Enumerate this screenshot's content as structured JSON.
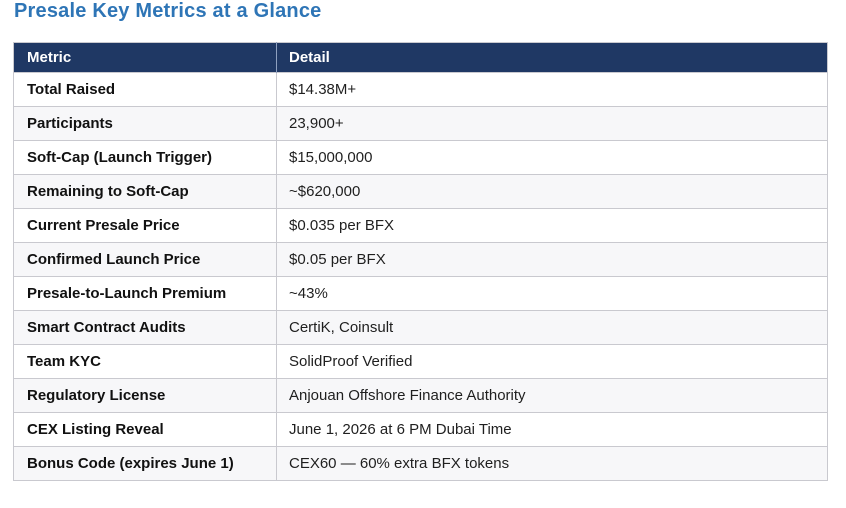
{
  "page": {
    "title": "Presale Key Metrics at a Glance"
  },
  "colors": {
    "title_text": "#2e75b6",
    "header_bg": "#1f3864",
    "header_text": "#ffffff",
    "row_alt_bg": "#f7f7f9",
    "border": "#c9c9cf"
  },
  "table": {
    "columns": [
      "Metric",
      "Detail"
    ],
    "rows": [
      {
        "metric": "Total Raised",
        "detail": "$14.38M+"
      },
      {
        "metric": "Participants",
        "detail": "23,900+"
      },
      {
        "metric": "Soft-Cap (Launch Trigger)",
        "detail": "$15,000,000"
      },
      {
        "metric": "Remaining to Soft-Cap",
        "detail": "~$620,000"
      },
      {
        "metric": "Current Presale Price",
        "detail": "$0.035 per BFX"
      },
      {
        "metric": "Confirmed Launch Price",
        "detail": "$0.05 per BFX"
      },
      {
        "metric": "Presale-to-Launch Premium",
        "detail": "~43%"
      },
      {
        "metric": "Smart Contract Audits",
        "detail": "CertiK, Coinsult"
      },
      {
        "metric": "Team KYC",
        "detail": "SolidProof Verified"
      },
      {
        "metric": "Regulatory License",
        "detail": "Anjouan Offshore Finance Authority"
      },
      {
        "metric": "CEX Listing Reveal",
        "detail": "June 1, 2026 at 6 PM Dubai Time"
      },
      {
        "metric": "Bonus Code (expires June 1)",
        "detail": "CEX60 — 60% extra BFX tokens"
      }
    ]
  }
}
